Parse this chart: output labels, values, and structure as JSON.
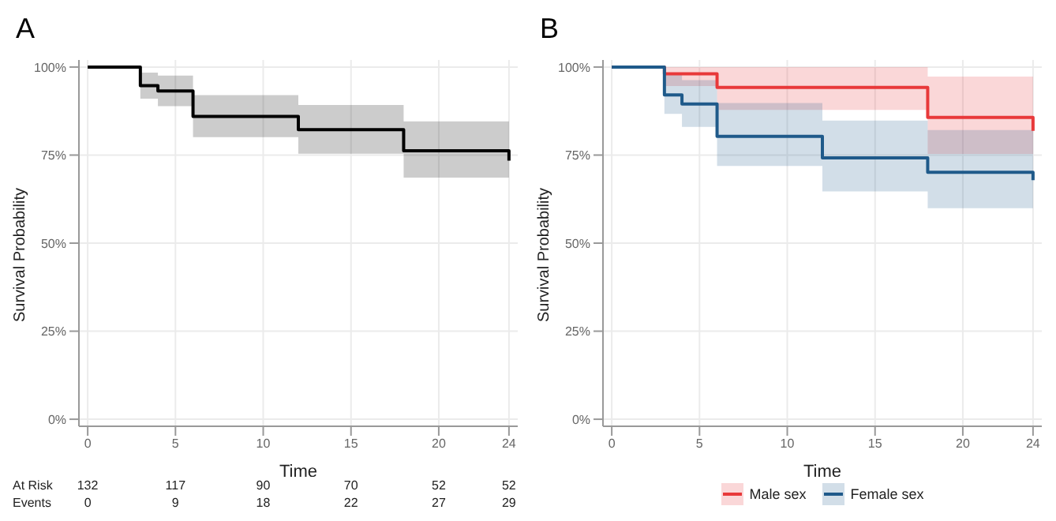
{
  "chart_data": [
    {
      "type": "step",
      "title": "A",
      "xlabel": "Time",
      "ylabel": "Survival Probability",
      "xlim": [
        -0.5,
        24.5
      ],
      "ylim": [
        -2,
        102
      ],
      "xticks": [
        0,
        5,
        10,
        15,
        20,
        24
      ],
      "yticks": [
        {
          "value": 0,
          "label": "0%"
        },
        {
          "value": 25,
          "label": "25%"
        },
        {
          "value": 50,
          "label": "50%"
        },
        {
          "value": 75,
          "label": "75%"
        },
        {
          "value": 100,
          "label": "100%"
        }
      ],
      "grid": true,
      "legend": false,
      "series": [
        {
          "color": "#000000",
          "x": [
            0,
            3,
            4,
            6,
            12,
            18,
            24
          ],
          "values": [
            100,
            94.7,
            93.2,
            86,
            82.2,
            76.2,
            73.4
          ],
          "lower": [
            100,
            91,
            88.9,
            80.1,
            75.4,
            68.6,
            68.6
          ],
          "upper": [
            100,
            98.4,
            97.6,
            92,
            89.2,
            84.6,
            84.6
          ]
        }
      ],
      "annotations": [
        "At Risk",
        "132",
        "117",
        "90",
        "70",
        "52",
        "52",
        "Events",
        "0",
        "9",
        "18",
        "22",
        "27",
        "29"
      ]
    },
    {
      "type": "step",
      "title": "B",
      "xlabel": "Time",
      "ylabel": "Survival Probability",
      "xlim": [
        -0.5,
        24.5
      ],
      "ylim": [
        -2,
        102
      ],
      "xticks": [
        0,
        5,
        10,
        15,
        20,
        24
      ],
      "yticks": [
        {
          "value": 0,
          "label": "0%"
        },
        {
          "value": 25,
          "label": "25%"
        },
        {
          "value": 50,
          "label": "50%"
        },
        {
          "value": 75,
          "label": "75%"
        },
        {
          "value": 100,
          "label": "100%"
        }
      ],
      "grid": true,
      "legend": "bottom",
      "series": [
        {
          "name": "Male sex",
          "color": "#e8393a",
          "x": [
            0,
            3,
            6,
            18,
            24
          ],
          "values": [
            100,
            98.1,
            94.2,
            85.7,
            81.9
          ],
          "lower": [
            100,
            94.6,
            87.8,
            75.3,
            75.3
          ],
          "upper": [
            100,
            100,
            100,
            97.3,
            97.3
          ]
        },
        {
          "name": "Female sex",
          "color": "#1f5a8a",
          "x": [
            0,
            3,
            4,
            6,
            12,
            18,
            24
          ],
          "values": [
            100,
            92.1,
            89.5,
            80.3,
            74.2,
            70.1,
            67.9
          ],
          "lower": [
            100,
            86.7,
            83,
            71.9,
            64.7,
            59.9,
            59.9
          ],
          "upper": [
            100,
            98.1,
            96.3,
            89.8,
            84.8,
            82.1,
            82.1
          ]
        }
      ]
    }
  ]
}
